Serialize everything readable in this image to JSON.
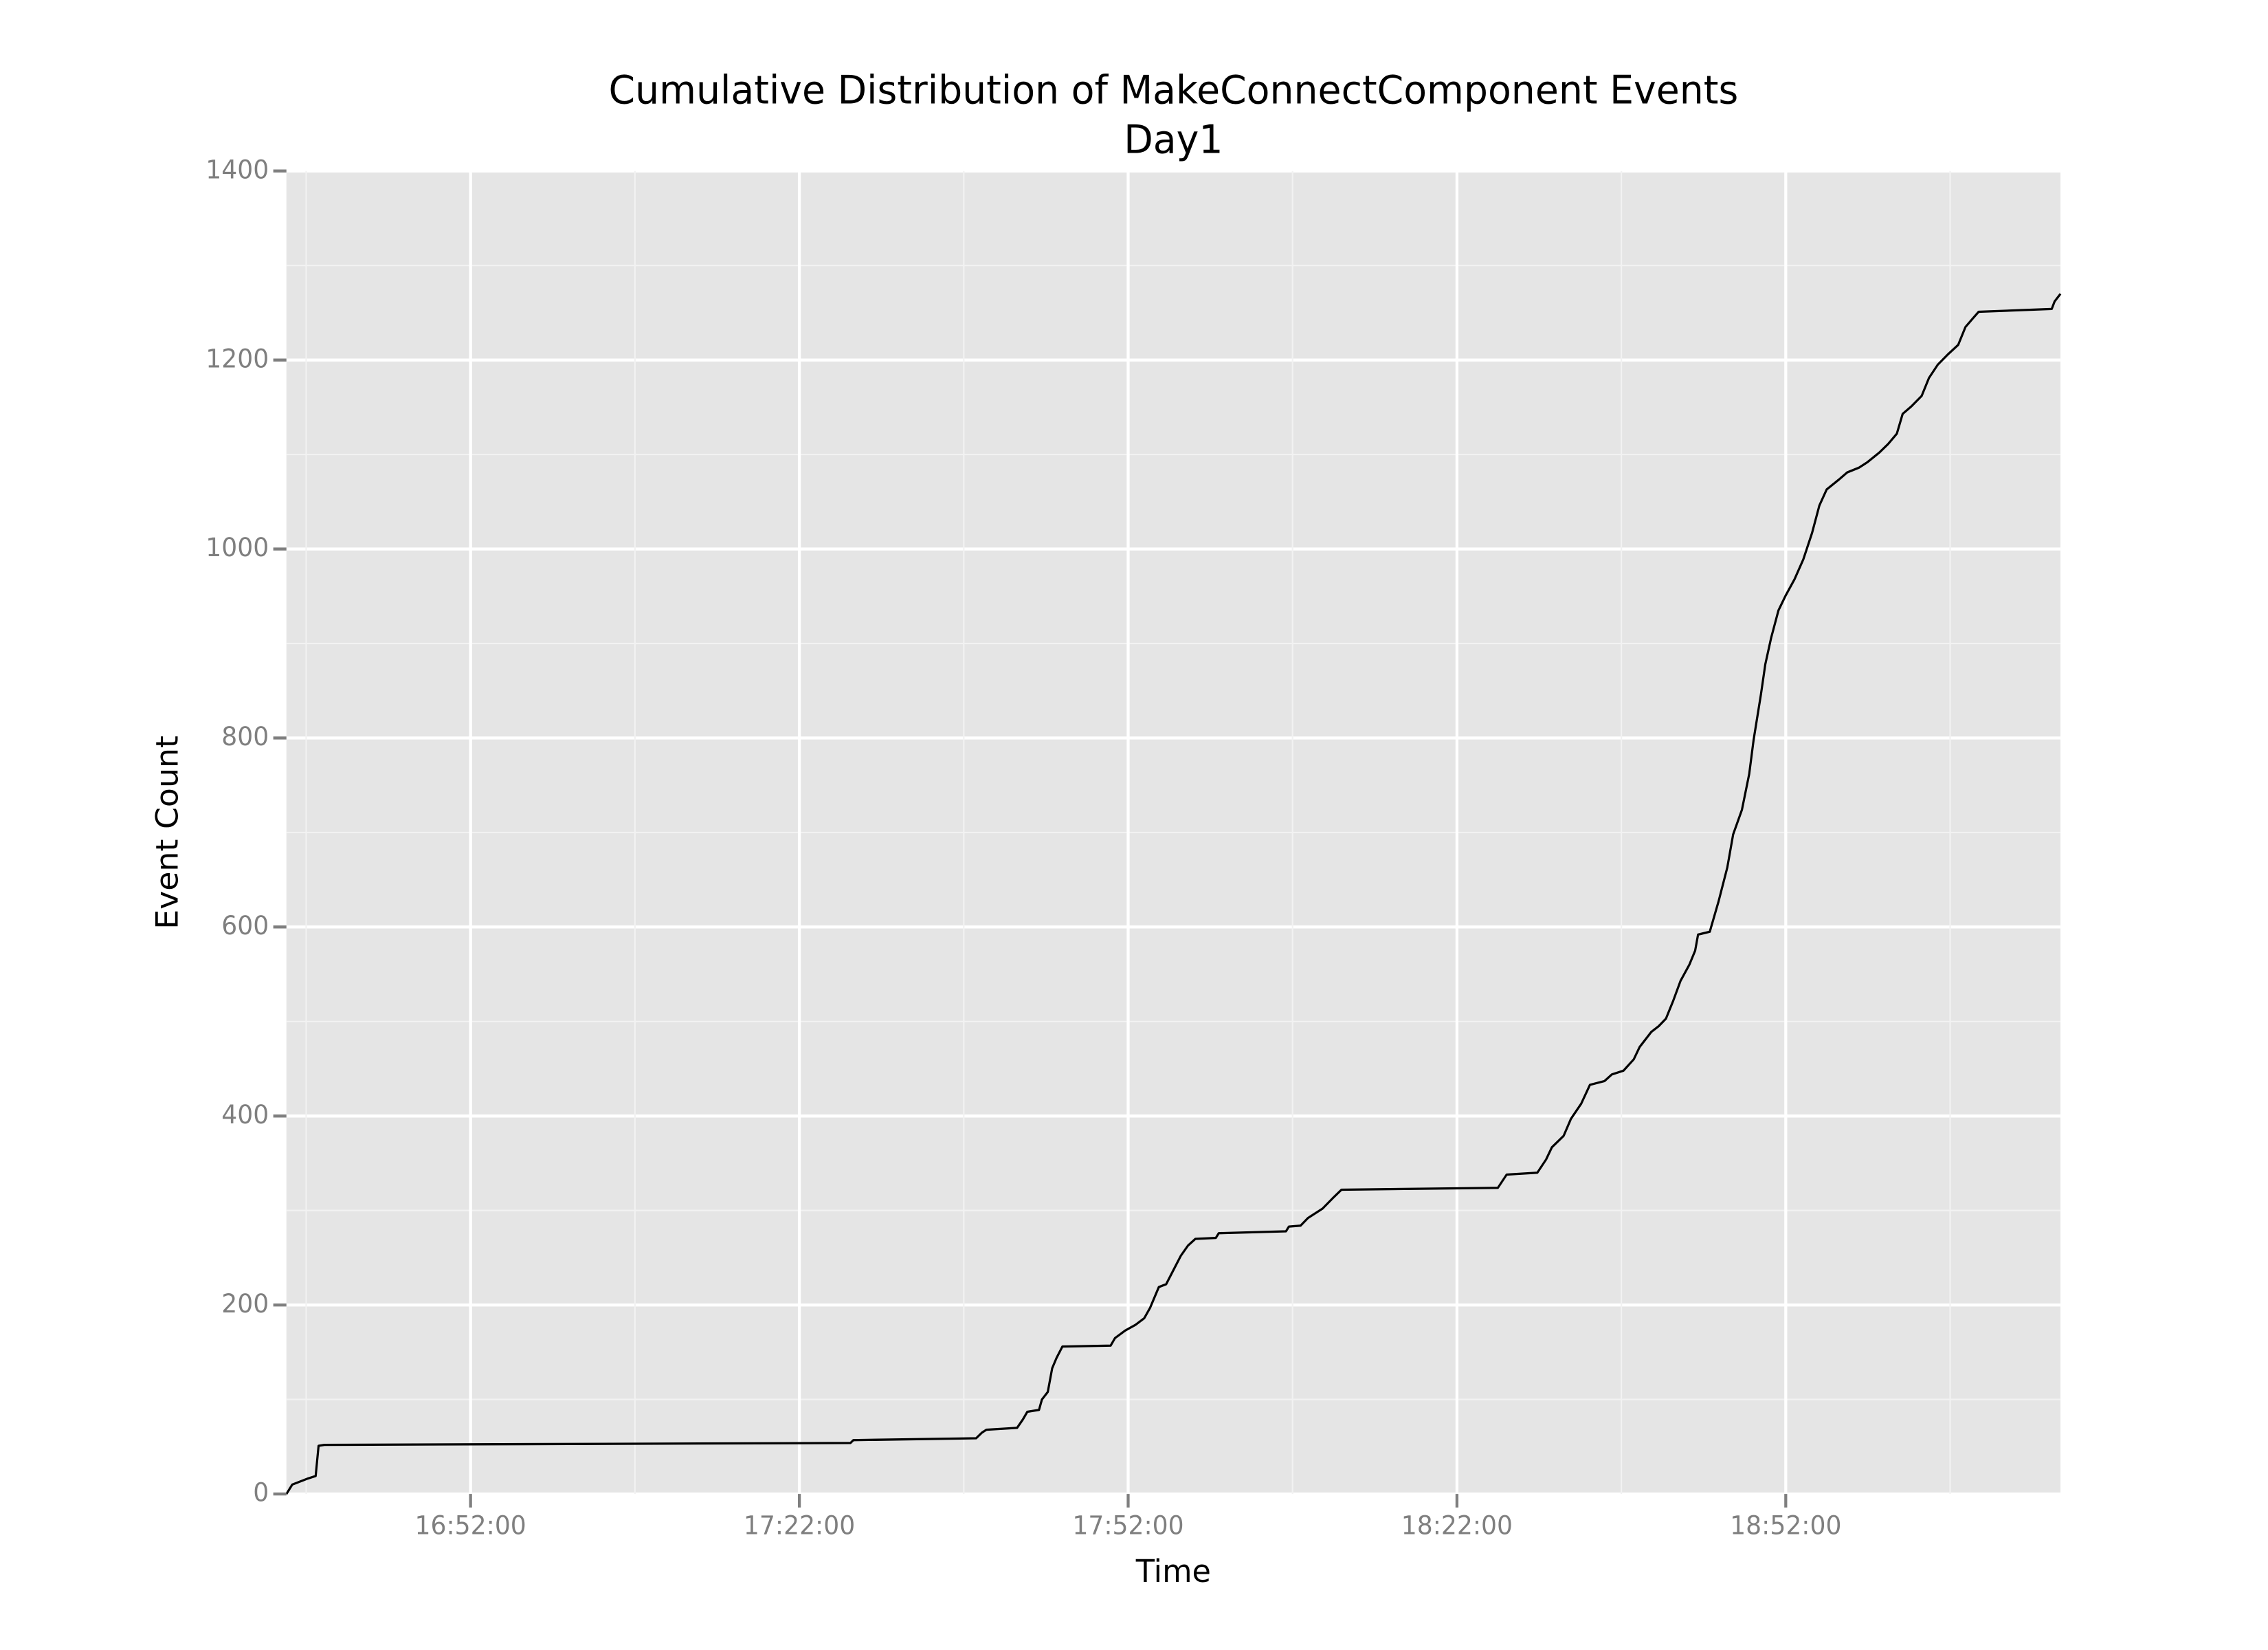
{
  "chart_data": {
    "type": "line",
    "title": "Cumulative Distribution of MakeConnectComponent Events",
    "subtitle": "Day1",
    "x_label": "Time",
    "y_label": "Event Count",
    "color": "#000000",
    "grid": true,
    "xlim": [
      "16:35:12",
      "19:17:04"
    ],
    "xticks": [
      "16:52:00",
      "17:22:00",
      "17:52:00",
      "18:22:00",
      "18:52:00"
    ],
    "ylim": [
      0,
      1400
    ],
    "yticks": [
      0,
      200,
      400,
      600,
      800,
      1000,
      1200,
      1400
    ],
    "x": [
      "16:35:12",
      "16:35:44",
      "16:36:24",
      "16:37:04",
      "16:37:52",
      "16:38:08",
      "16:38:40",
      "17:26:40",
      "17:26:56",
      "17:38:08",
      "17:38:40",
      "17:39:04",
      "17:41:52",
      "17:42:24",
      "17:42:48",
      "17:43:52",
      "17:44:08",
      "17:44:40",
      "17:45:04",
      "17:45:28",
      "17:46:00",
      "17:50:24",
      "17:50:48",
      "17:51:44",
      "17:52:40",
      "17:53:28",
      "17:54:00",
      "17:54:48",
      "17:55:28",
      "17:56:16",
      "17:56:48",
      "17:57:28",
      "17:58:08",
      "18:00:00",
      "18:00:16",
      "18:06:24",
      "18:06:40",
      "18:07:44",
      "18:08:24",
      "18:09:44",
      "18:10:40",
      "18:11:28",
      "18:25:44",
      "18:26:32",
      "18:29:20",
      "18:30:08",
      "18:30:40",
      "18:31:44",
      "18:32:24",
      "18:33:20",
      "18:34:08",
      "18:35:28",
      "18:36:08",
      "18:37:12",
      "18:38:08",
      "18:38:40",
      "18:39:44",
      "18:40:24",
      "18:41:04",
      "18:41:44",
      "18:42:24",
      "18:43:12",
      "18:43:44",
      "18:44:00",
      "18:45:04",
      "18:45:52",
      "18:46:40",
      "18:47:12",
      "18:48:00",
      "18:48:40",
      "18:49:04",
      "18:49:44",
      "18:50:08",
      "18:50:40",
      "18:51:20",
      "18:52:00",
      "18:52:48",
      "18:53:36",
      "18:54:24",
      "18:55:04",
      "18:55:44",
      "18:56:48",
      "18:57:36",
      "18:58:40",
      "18:59:28",
      "19:00:32",
      "19:01:20",
      "19:02:08",
      "19:02:40",
      "19:03:28",
      "19:04:24",
      "19:05:04",
      "19:05:52",
      "19:06:48",
      "19:07:44",
      "19:08:24",
      "19:09:04",
      "19:09:36",
      "19:16:16",
      "19:16:32",
      "19:17:04"
    ],
    "values": [
      0,
      10,
      13,
      16,
      19,
      51,
      52,
      54,
      57,
      59,
      65,
      68,
      70,
      79,
      87,
      89,
      100,
      108,
      133,
      144,
      156,
      157,
      165,
      173,
      179,
      186,
      197,
      219,
      222,
      240,
      252,
      263,
      270,
      271,
      276,
      278,
      283,
      284,
      292,
      302,
      313,
      322,
      324,
      338,
      340,
      354,
      367,
      379,
      397,
      413,
      433,
      437,
      444,
      448,
      460,
      473,
      489,
      495,
      503,
      522,
      543,
      560,
      575,
      592,
      595,
      627,
      663,
      698,
      724,
      762,
      798,
      846,
      878,
      906,
      935,
      951,
      968,
      989,
      1017,
      1046,
      1063,
      1073,
      1081,
      1086,
      1092,
      1102,
      1111,
      1122,
      1143,
      1151,
      1162,
      1181,
      1195,
      1206,
      1216,
      1235,
      1244,
      1251,
      1254,
      1262,
      1270
    ]
  }
}
